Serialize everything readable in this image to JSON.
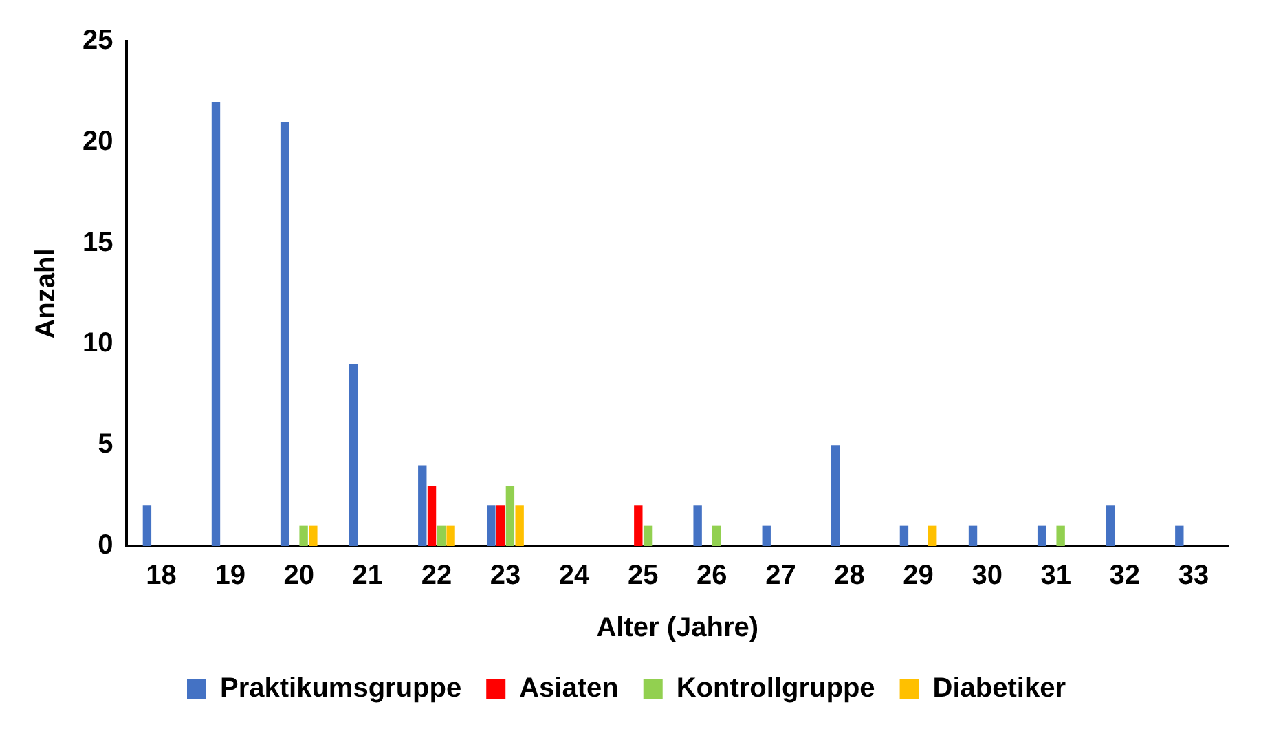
{
  "chart_data": {
    "type": "bar",
    "xlabel": "Alter (Jahre)",
    "ylabel": "Anzahl",
    "categories": [
      "18",
      "19",
      "20",
      "21",
      "22",
      "23",
      "24",
      "25",
      "26",
      "27",
      "28",
      "29",
      "30",
      "31",
      "32",
      "33"
    ],
    "series": [
      {
        "name": "Praktikumsgruppe",
        "color": "#4472c4",
        "values": [
          2,
          22,
          21,
          9,
          4,
          2,
          0,
          0,
          2,
          1,
          5,
          1,
          1,
          1,
          2,
          1
        ]
      },
      {
        "name": "Asiaten",
        "color": "#ff0000",
        "values": [
          0,
          0,
          0,
          0,
          3,
          2,
          0,
          2,
          0,
          0,
          0,
          0,
          0,
          0,
          0,
          0
        ]
      },
      {
        "name": "Kontrollgruppe",
        "color": "#92d050",
        "values": [
          0,
          0,
          1,
          0,
          1,
          3,
          0,
          1,
          1,
          0,
          0,
          0,
          0,
          1,
          0,
          0
        ]
      },
      {
        "name": "Diabetiker",
        "color": "#ffc000",
        "values": [
          0,
          0,
          1,
          0,
          1,
          2,
          0,
          0,
          0,
          0,
          0,
          1,
          0,
          0,
          0,
          0
        ]
      }
    ],
    "ylim": [
      0,
      25
    ],
    "yticks": [
      0,
      5,
      10,
      15,
      20,
      25
    ],
    "grid": false,
    "legend": "bottom"
  }
}
